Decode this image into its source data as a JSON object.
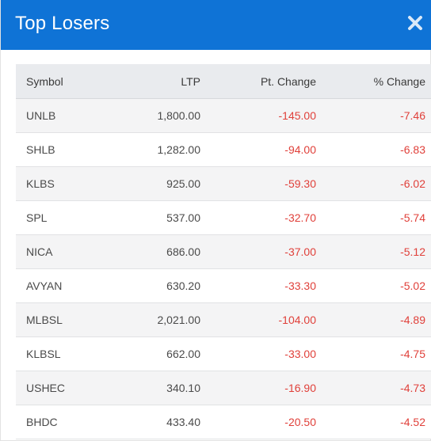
{
  "header": {
    "title": "Top Losers",
    "close_icon": "close-icon"
  },
  "colors": {
    "header_bg": "#0f73d6",
    "negative": "#e0403a",
    "table_header_bg": "#e9ebee",
    "row_stripe": "#f4f4f5"
  },
  "table": {
    "columns": [
      "Symbol",
      "LTP",
      "Pt. Change",
      "% Change"
    ],
    "rows": [
      {
        "symbol": "UNLB",
        "ltp": "1,800.00",
        "pt_change": "-145.00",
        "pct_change": "-7.46"
      },
      {
        "symbol": "SHLB",
        "ltp": "1,282.00",
        "pt_change": "-94.00",
        "pct_change": "-6.83"
      },
      {
        "symbol": "KLBS",
        "ltp": "925.00",
        "pt_change": "-59.30",
        "pct_change": "-6.02"
      },
      {
        "symbol": "SPL",
        "ltp": "537.00",
        "pt_change": "-32.70",
        "pct_change": "-5.74"
      },
      {
        "symbol": "NICA",
        "ltp": "686.00",
        "pt_change": "-37.00",
        "pct_change": "-5.12"
      },
      {
        "symbol": "AVYAN",
        "ltp": "630.20",
        "pt_change": "-33.30",
        "pct_change": "-5.02"
      },
      {
        "symbol": "MLBSL",
        "ltp": "2,021.00",
        "pt_change": "-104.00",
        "pct_change": "-4.89"
      },
      {
        "symbol": "KLBSL",
        "ltp": "662.00",
        "pt_change": "-33.00",
        "pct_change": "-4.75"
      },
      {
        "symbol": "USHEC",
        "ltp": "340.10",
        "pt_change": "-16.90",
        "pct_change": "-4.73"
      },
      {
        "symbol": "BHDC",
        "ltp": "433.40",
        "pt_change": "-20.50",
        "pct_change": "-4.52"
      }
    ]
  }
}
